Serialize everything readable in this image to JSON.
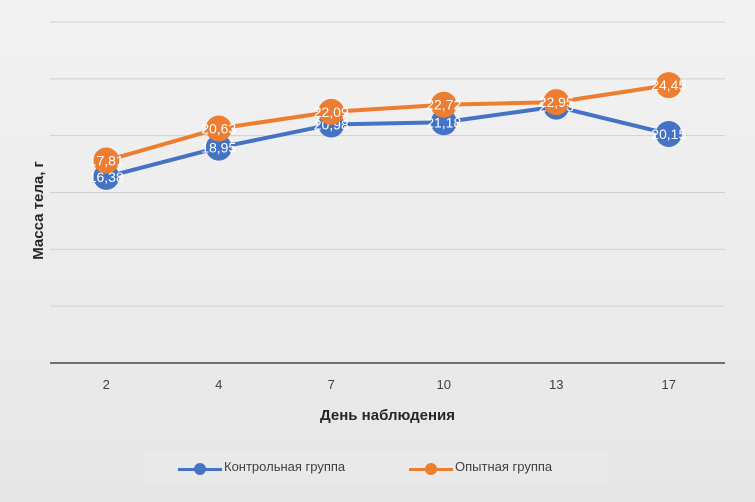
{
  "colors": {
    "series_0": "#4472c4",
    "series_1": "#ed7d31"
  },
  "chart_data": {
    "type": "line",
    "title": "",
    "xlabel": "День наблюдения",
    "ylabel": "Масса тела, г",
    "categories": [
      "2",
      "4",
      "7",
      "10",
      "13",
      "17"
    ],
    "series": [
      {
        "name": "Контрольная группа",
        "values": [
          16.38,
          18.95,
          20.98,
          21.18,
          22.56,
          20.15
        ],
        "labels": [
          "16,38",
          "18,95",
          "20,98",
          "21,18",
          "22,56",
          "20,15"
        ]
      },
      {
        "name": "Опытная группа",
        "values": [
          17.81,
          20.63,
          22.09,
          22.72,
          22.95,
          24.45
        ],
        "labels": [
          "17,81",
          "20,63",
          "22,09",
          "22,72",
          "22,95",
          "24,45"
        ]
      }
    ],
    "ylim": [
      0,
      30
    ],
    "y_tick_labels_shown": false,
    "grid": true,
    "legend_position": "bottom"
  }
}
